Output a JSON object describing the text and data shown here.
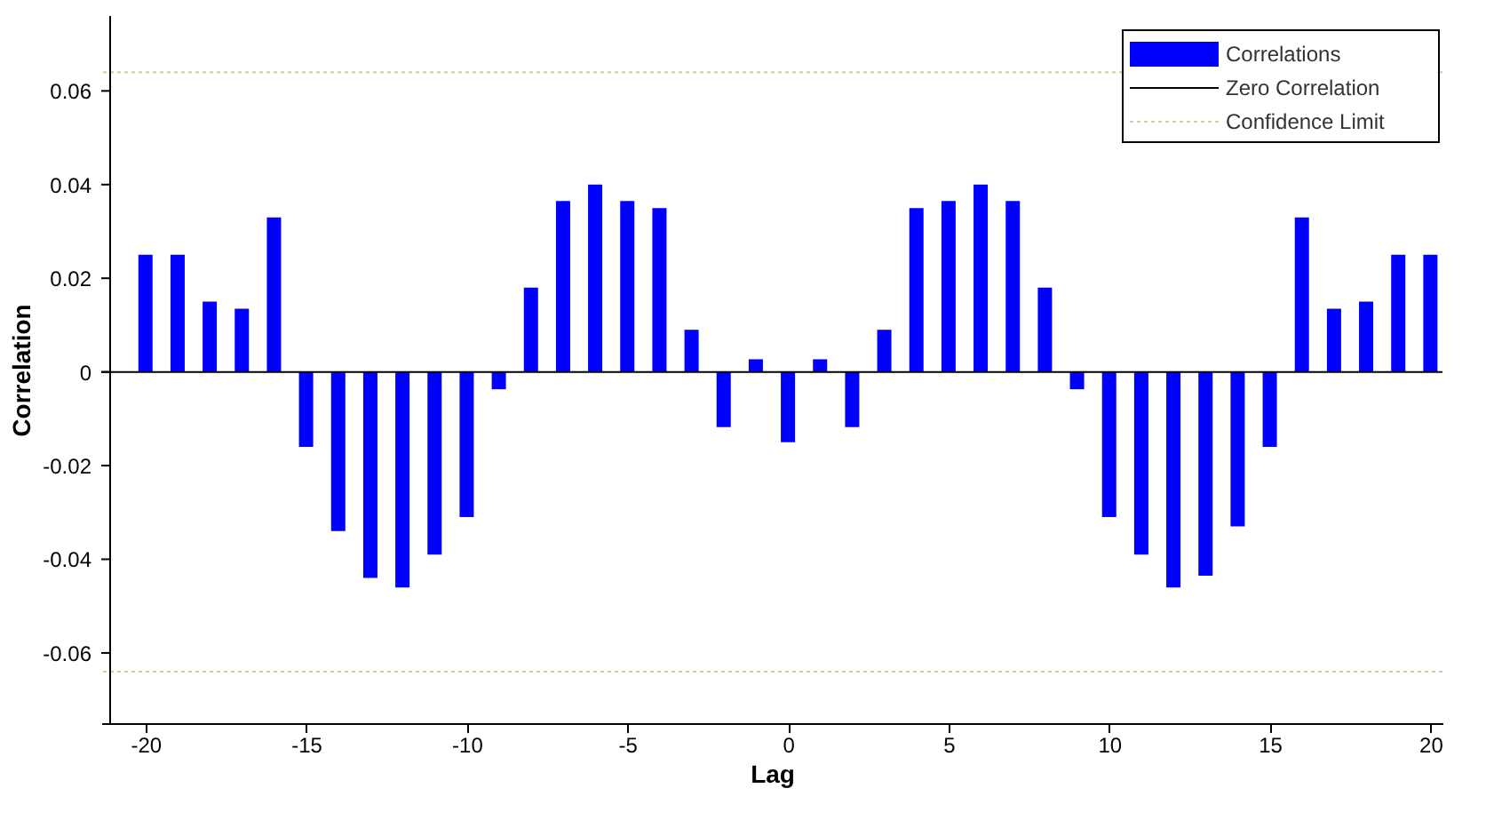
{
  "chart_data": {
    "type": "bar",
    "xlabel": "Lag",
    "ylabel": "Correlation",
    "x": [
      -20,
      -19,
      -18,
      -17,
      -16,
      -15,
      -14,
      -13,
      -12,
      -11,
      -10,
      -9,
      -8,
      -7,
      -6,
      -5,
      -4,
      -3,
      -2,
      -1,
      0,
      1,
      2,
      3,
      4,
      5,
      6,
      7,
      8,
      9,
      10,
      11,
      12,
      13,
      14,
      15,
      16,
      17,
      18,
      19,
      20
    ],
    "series": [
      {
        "name": "Correlations",
        "color": "#0000ff",
        "values": [
          0.025,
          0.025,
          0.015,
          0.0135,
          0.033,
          -0.016,
          -0.034,
          -0.044,
          -0.046,
          -0.039,
          -0.031,
          -0.0037,
          0.018,
          0.0365,
          0.04,
          0.0365,
          0.035,
          0.009,
          -0.0118,
          0.0027,
          -0.015,
          0.0027,
          -0.0118,
          0.009,
          0.035,
          0.0365,
          0.04,
          0.0365,
          0.018,
          -0.0037,
          -0.031,
          -0.039,
          -0.046,
          -0.0435,
          -0.033,
          -0.016,
          0.033,
          0.0135,
          0.015,
          0.025,
          0.025
        ]
      }
    ],
    "ref_lines": [
      {
        "axis": "y",
        "value": 0,
        "label": "Zero Correlation",
        "color": "#000000",
        "line_style": "solid"
      },
      {
        "axis": "y",
        "value": 0.064,
        "label": "Confidence Limit",
        "color": "#d8c89a",
        "line_style": "dotted"
      },
      {
        "axis": "y",
        "value": -0.064,
        "color": "#d8c89a",
        "line_style": "dotted"
      }
    ],
    "xlim": [
      -21.1,
      20.1
    ],
    "ylim": [
      -0.075,
      0.076
    ],
    "xticks": [
      -20,
      -15,
      -10,
      -5,
      0,
      5,
      10,
      15,
      20
    ],
    "yticks": [
      -0.06,
      -0.04,
      -0.02,
      0,
      0.02,
      0.04,
      0.06
    ],
    "grid": false,
    "legend": "top right"
  }
}
